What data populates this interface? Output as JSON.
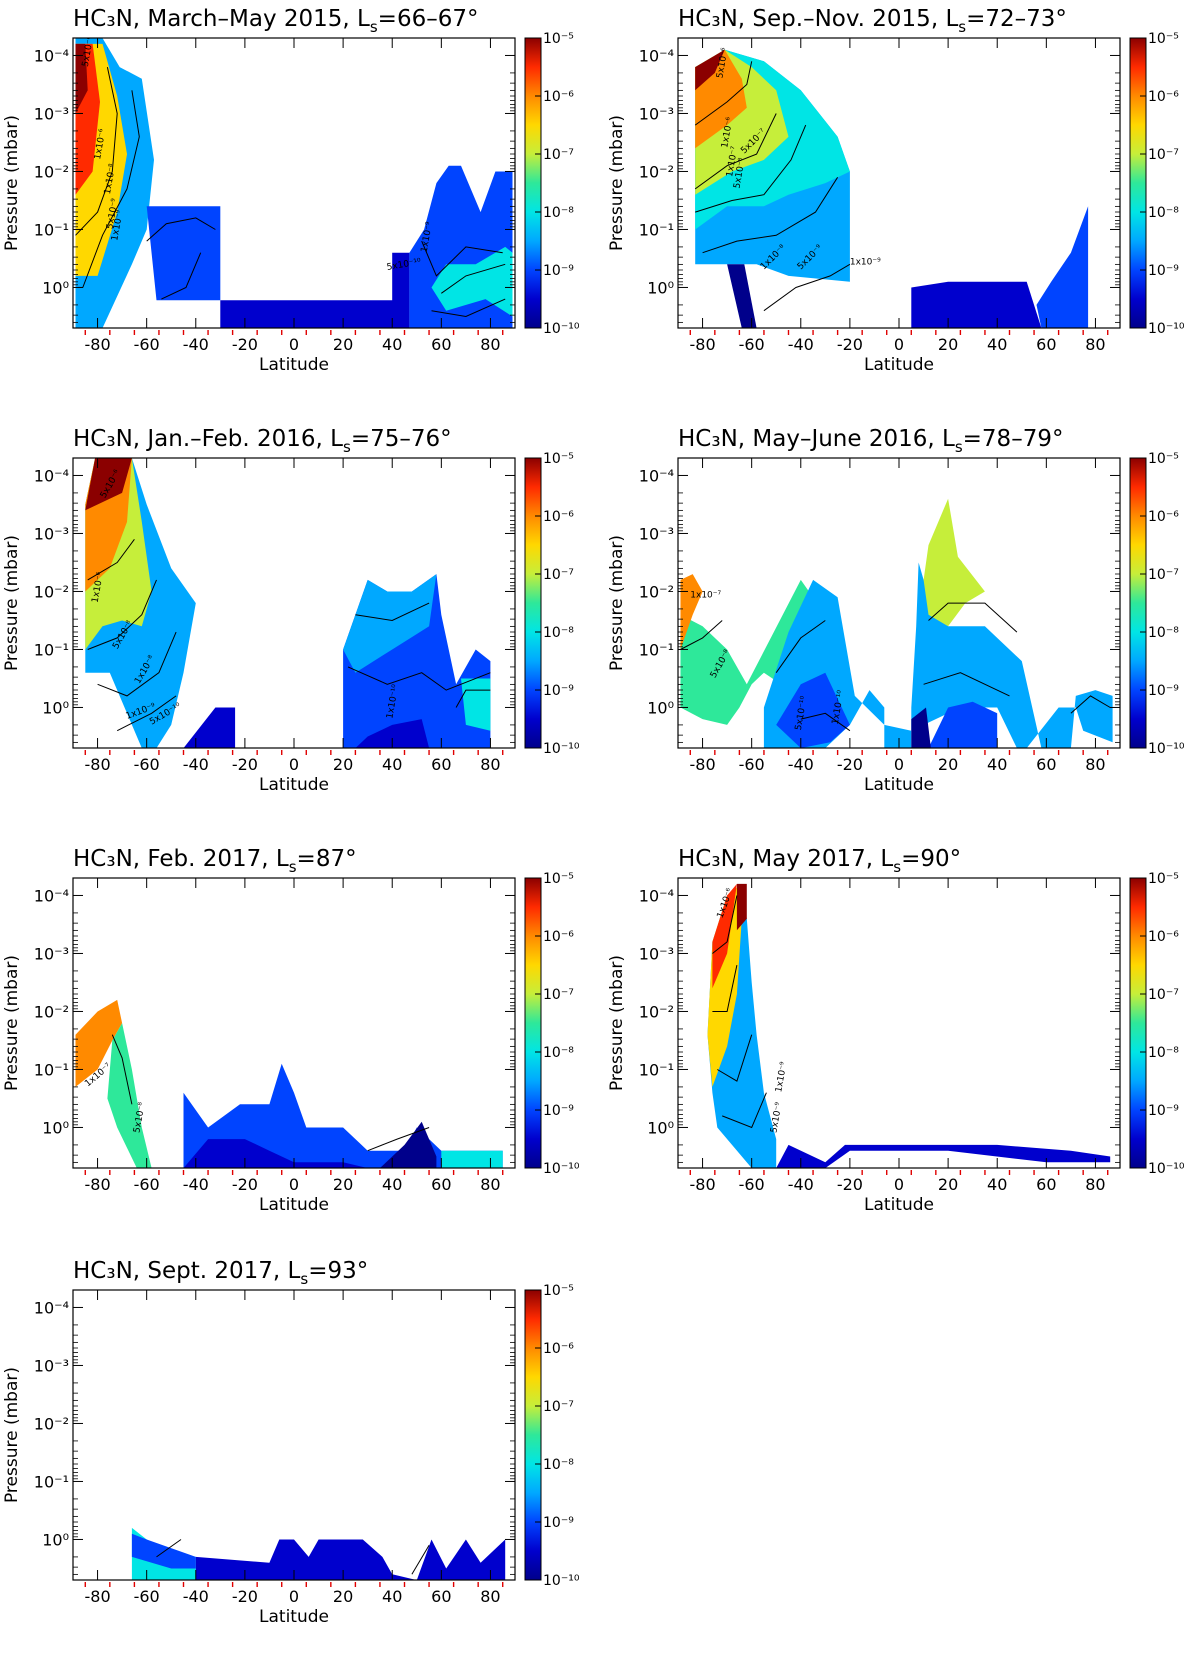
{
  "figure": {
    "species": "HC₃N",
    "colorbar_ticks": [
      "10⁻⁵",
      "10⁻⁶",
      "10⁻⁷",
      "10⁻⁸",
      "10⁻⁹",
      "10⁻¹⁰"
    ],
    "colorbar_values": [
      1e-05,
      1e-06,
      1e-07,
      1e-08,
      1e-09,
      1e-10
    ],
    "colormap": [
      "#00008b",
      "#0000cd",
      "#0044ff",
      "#00a8ff",
      "#00e5e5",
      "#2ee89a",
      "#c6ee3a",
      "#ffd800",
      "#ff8a00",
      "#ff2a00",
      "#8b0000"
    ]
  },
  "chart_data": [
    {
      "type": "heatmap",
      "title": "HC₃N, March–May 2015, Lₛ=66–67°",
      "title_main": "HC₃N, March–May 2015, L",
      "title_sub": "s",
      "title_tail": "=66–67°",
      "xlabel": "Latitude",
      "ylabel": "Pressure (mbar)",
      "xlim": [
        -90,
        90
      ],
      "ylim_mbar": [
        5,
        5e-05
      ],
      "log_y": true,
      "x_ticks": [
        "-80",
        "-60",
        "-40",
        "-20",
        "0",
        "20",
        "40",
        "60",
        "80"
      ],
      "y_ticks": [
        "10⁻⁴",
        "10⁻³",
        "10⁻²",
        "10⁻¹",
        "10⁰"
      ],
      "colorbar": {
        "min": 1e-10,
        "max": 1e-05,
        "scale": "log"
      },
      "contour_labels": [
        "5x10⁻⁶",
        "1x10⁻⁶",
        "1x10⁻⁸",
        "5x10⁻⁹",
        "1x10⁻⁹",
        "5x10⁻¹⁰",
        "1x10⁻⁹"
      ]
    },
    {
      "type": "heatmap",
      "title": "HC₃N, Sep.–Nov. 2015, Lₛ=72–73°",
      "title_main": "HC₃N, Sep.–Nov. 2015, L",
      "title_sub": "s",
      "title_tail": "=72–73°",
      "xlabel": "Latitude",
      "ylabel": "Pressure (mbar)",
      "xlim": [
        -90,
        90
      ],
      "ylim_mbar": [
        5,
        5e-05
      ],
      "log_y": true,
      "x_ticks": [
        "-80",
        "-60",
        "-40",
        "-20",
        "0",
        "20",
        "40",
        "60",
        "80"
      ],
      "y_ticks": [
        "10⁻⁴",
        "10⁻³",
        "10⁻²",
        "10⁻¹",
        "10⁰"
      ],
      "colorbar": {
        "min": 1e-10,
        "max": 1e-05,
        "scale": "log"
      },
      "contour_labels": [
        "5x10⁻⁶",
        "1x10⁻⁶",
        "5x10⁻⁷",
        "1x10⁻⁷",
        "5x10⁻⁸",
        "1x10⁻⁸",
        "5x10⁻⁹",
        "1x10⁻⁹"
      ]
    },
    {
      "type": "heatmap",
      "title": "HC₃N, Jan.–Feb. 2016, Lₛ=75–76°",
      "title_main": "HC₃N, Jan.–Feb. 2016, L",
      "title_sub": "s",
      "title_tail": "=75–76°",
      "xlabel": "Latitude",
      "ylabel": "Pressure (mbar)",
      "xlim": [
        -90,
        90
      ],
      "ylim_mbar": [
        5,
        5e-05
      ],
      "log_y": true,
      "x_ticks": [
        "-80",
        "-60",
        "-40",
        "-20",
        "0",
        "20",
        "40",
        "60",
        "80"
      ],
      "y_ticks": [
        "10⁻⁴",
        "10⁻³",
        "10⁻²",
        "10⁻¹",
        "10⁰"
      ],
      "colorbar": {
        "min": 1e-10,
        "max": 1e-05,
        "scale": "log"
      },
      "contour_labels": [
        "5x10⁻⁶",
        "1x10⁻⁶",
        "5x10⁻⁸",
        "1x10⁻⁸",
        "1x10⁻⁹",
        "5x10⁻¹⁰",
        "1x10⁻¹⁰"
      ]
    },
    {
      "type": "heatmap",
      "title": "HC₃N, May–June 2016, Lₛ=78–79°",
      "title_main": "HC₃N, May–June 2016, L",
      "title_sub": "s",
      "title_tail": "=78–79°",
      "xlabel": "Latitude",
      "ylabel": "Pressure (mbar)",
      "xlim": [
        -90,
        90
      ],
      "ylim_mbar": [
        5,
        5e-05
      ],
      "log_y": true,
      "x_ticks": [
        "-80",
        "-60",
        "-40",
        "-20",
        "0",
        "20",
        "40",
        "60",
        "80"
      ],
      "y_ticks": [
        "10⁻⁴",
        "10⁻³",
        "10⁻²",
        "10⁻¹",
        "10⁰"
      ],
      "colorbar": {
        "min": 1e-10,
        "max": 1e-05,
        "scale": "log"
      },
      "contour_labels": [
        "1x10⁻⁷",
        "5x10⁻⁸",
        "5x10⁻¹⁰",
        "1x10⁻¹⁰"
      ]
    },
    {
      "type": "heatmap",
      "title": "HC₃N, Feb. 2017, Lₛ=87°",
      "title_main": "HC₃N, Feb. 2017, L",
      "title_sub": "s",
      "title_tail": "=87°",
      "xlabel": "Latitude",
      "ylabel": "Pressure (mbar)",
      "xlim": [
        -90,
        90
      ],
      "ylim_mbar": [
        5,
        5e-05
      ],
      "log_y": true,
      "x_ticks": [
        "-80",
        "-60",
        "-40",
        "-20",
        "0",
        "20",
        "40",
        "60",
        "80"
      ],
      "y_ticks": [
        "10⁻⁴",
        "10⁻³",
        "10⁻²",
        "10⁻¹",
        "10⁰"
      ],
      "colorbar": {
        "min": 1e-10,
        "max": 1e-05,
        "scale": "log"
      },
      "contour_labels": [
        "1x10⁻⁷",
        "5x10⁻⁸"
      ]
    },
    {
      "type": "heatmap",
      "title": "HC₃N, May 2017, Lₛ=90°",
      "title_main": "HC₃N, May 2017, L",
      "title_sub": "s",
      "title_tail": "=90°",
      "xlabel": "Latitude",
      "ylabel": "Pressure (mbar)",
      "xlim": [
        -90,
        90
      ],
      "ylim_mbar": [
        5,
        5e-05
      ],
      "log_y": true,
      "x_ticks": [
        "-80",
        "-60",
        "-40",
        "-20",
        "0",
        "20",
        "40",
        "60",
        "80"
      ],
      "y_ticks": [
        "10⁻⁴",
        "10⁻³",
        "10⁻²",
        "10⁻¹",
        "10⁰"
      ],
      "colorbar": {
        "min": 1e-10,
        "max": 1e-05,
        "scale": "log"
      },
      "contour_labels": [
        "1x10⁻⁶",
        "1x10⁻⁹",
        "5x10⁻⁹"
      ]
    },
    {
      "type": "heatmap",
      "title": "HC₃N, Sept. 2017, Lₛ=93°",
      "title_main": "HC₃N, Sept. 2017, L",
      "title_sub": "s",
      "title_tail": "=93°",
      "xlabel": "Latitude",
      "ylabel": "Pressure (mbar)",
      "xlim": [
        -90,
        90
      ],
      "ylim_mbar": [
        5,
        5e-05
      ],
      "log_y": true,
      "x_ticks": [
        "-80",
        "-60",
        "-40",
        "-20",
        "0",
        "20",
        "40",
        "60",
        "80"
      ],
      "y_ticks": [
        "10⁻⁴",
        "10⁻³",
        "10⁻²",
        "10⁻¹",
        "10⁰"
      ],
      "colorbar": {
        "min": 1e-10,
        "max": 1e-05,
        "scale": "log"
      },
      "contour_labels": []
    }
  ]
}
